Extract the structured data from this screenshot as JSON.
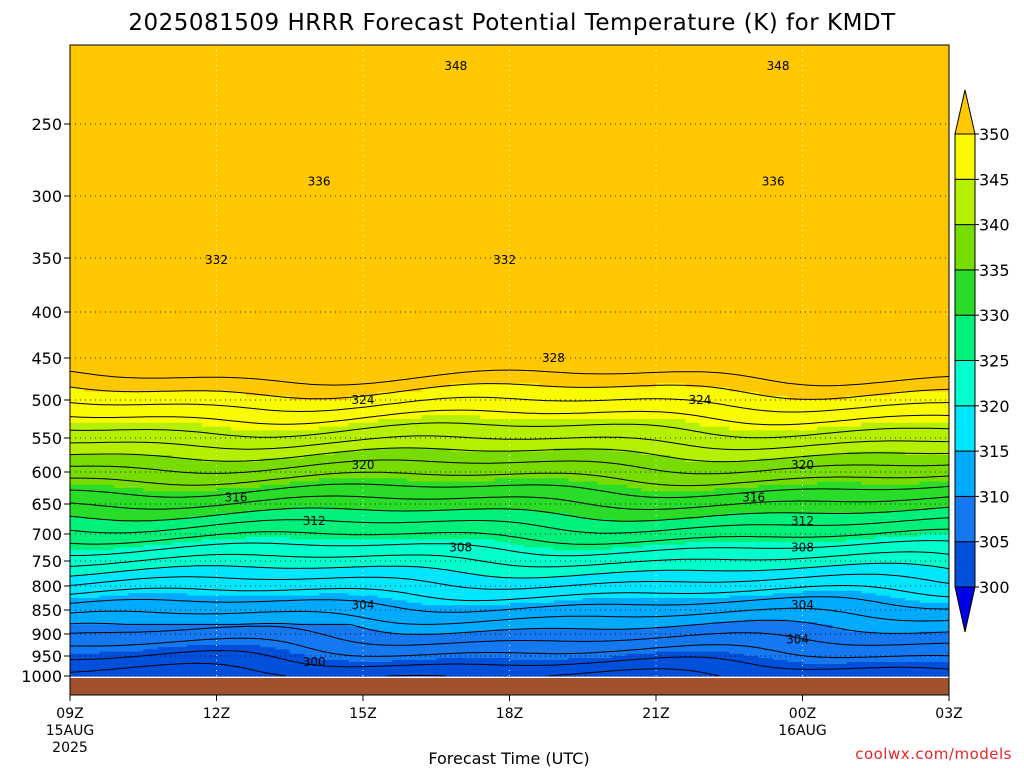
{
  "chart_data": {
    "type": "contour",
    "title": "2025081509 HRRR Forecast Potential Temperature (K) for KMDT",
    "xlabel": "Forecast Time (UTC)",
    "ylabel": "",
    "x_ticks": [
      {
        "hours": 0,
        "label": "09Z",
        "sub1": "15AUG",
        "sub2": "2025"
      },
      {
        "hours": 3,
        "label": "12Z",
        "sub1": "",
        "sub2": ""
      },
      {
        "hours": 6,
        "label": "15Z",
        "sub1": "",
        "sub2": ""
      },
      {
        "hours": 9,
        "label": "18Z",
        "sub1": "",
        "sub2": ""
      },
      {
        "hours": 12,
        "label": "21Z",
        "sub1": "",
        "sub2": ""
      },
      {
        "hours": 15,
        "label": "00Z",
        "sub1": "16AUG",
        "sub2": ""
      },
      {
        "hours": 18,
        "label": "03Z",
        "sub1": "",
        "sub2": ""
      }
    ],
    "y_ticks": [
      250,
      300,
      350,
      400,
      450,
      500,
      550,
      600,
      650,
      700,
      750,
      800,
      850,
      900,
      950,
      1000
    ],
    "colorbar": {
      "levels": [
        300,
        305,
        310,
        315,
        320,
        325,
        330,
        335,
        340,
        345,
        350
      ],
      "colors": [
        "#0000e6",
        "#0050dc",
        "#1478f0",
        "#00aaff",
        "#00e6ff",
        "#00ffcc",
        "#00f07a",
        "#28dc28",
        "#78dc00",
        "#b4f000",
        "#fafa00",
        "#ffc800"
      ]
    },
    "contour_labels": [
      {
        "value": 348,
        "x_hours": [
          7.9,
          14.5
        ],
        "pressure": 212
      },
      {
        "value": 336,
        "x_hours": [
          5.1,
          14.4
        ],
        "pressure": 290
      },
      {
        "value": 332,
        "x_hours": [
          3.0,
          8.9
        ],
        "pressure": 352
      },
      {
        "value": 328,
        "x_hours": [
          9.9
        ],
        "pressure": 450
      },
      {
        "value": 324,
        "x_hours": [
          6.0,
          12.9
        ],
        "pressure": 500
      },
      {
        "value": 320,
        "x_hours": [
          6.0,
          15.0
        ],
        "pressure": 590
      },
      {
        "value": 316,
        "x_hours": [
          3.4,
          14.0
        ],
        "pressure": 640
      },
      {
        "value": 312,
        "x_hours": [
          5.0,
          15.0
        ],
        "pressure": 678
      },
      {
        "value": 308,
        "x_hours": [
          8.0,
          15.0
        ],
        "pressure": 725
      },
      {
        "value": 304,
        "x_hours": [
          6.0,
          15.0
        ],
        "pressure": 840
      },
      {
        "value": 304,
        "x_hours": [
          14.9
        ],
        "pressure": 912
      },
      {
        "value": 300,
        "x_hours": [
          5.0
        ],
        "pressure": 965
      }
    ],
    "surface_pressure": 1000,
    "grid": true
  },
  "credit": "coolwx.com/models"
}
